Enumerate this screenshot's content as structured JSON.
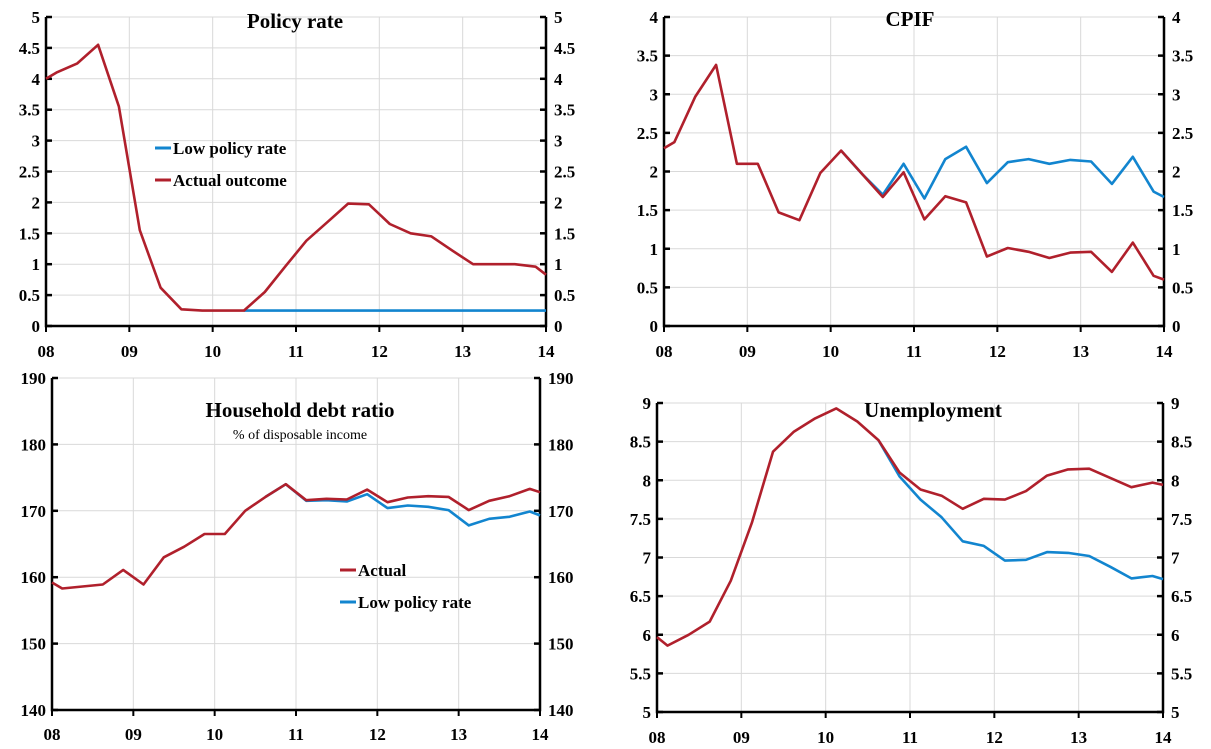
{
  "colors": {
    "actual": "#B0202C",
    "low": "#1285CF"
  },
  "chart_data": [
    {
      "type": "line",
      "title": "Policy rate",
      "subtitle": "",
      "xticks": [
        "08",
        "09",
        "10",
        "11",
        "12",
        "13",
        "14"
      ],
      "xlim": [
        0,
        6
      ],
      "ylim": [
        0,
        5
      ],
      "yticks": [
        "0",
        "0.5",
        "1",
        "1.5",
        "2",
        "2.5",
        "3",
        "3.5",
        "4",
        "4.5",
        "5"
      ],
      "grid": true,
      "legend": [
        "Low policy rate",
        "Actual outcome"
      ],
      "series": [
        {
          "name": "Low policy rate",
          "key": "low",
          "x": [
            2.375,
            2.625,
            2.875,
            3.125,
            3.375,
            3.625,
            3.875,
            4.125,
            4.375,
            4.625,
            4.875,
            5.125,
            5.375,
            5.625,
            5.875,
            6
          ],
          "y": [
            0.25,
            0.25,
            0.25,
            0.25,
            0.25,
            0.25,
            0.25,
            0.25,
            0.25,
            0.25,
            0.25,
            0.25,
            0.25,
            0.25,
            0.25,
            0.25
          ]
        },
        {
          "name": "Actual outcome",
          "key": "actual",
          "x": [
            0,
            0.125,
            0.375,
            0.625,
            0.875,
            1.125,
            1.375,
            1.625,
            1.875,
            2.125,
            2.375,
            2.625,
            2.875,
            3.125,
            3.375,
            3.625,
            3.875,
            4.125,
            4.375,
            4.625,
            4.875,
            5.125,
            5.375,
            5.625,
            5.875,
            6
          ],
          "y": [
            4.0,
            4.1,
            4.25,
            4.55,
            3.55,
            1.55,
            0.62,
            0.27,
            0.25,
            0.25,
            0.25,
            0.55,
            0.97,
            1.38,
            1.68,
            1.98,
            1.97,
            1.65,
            1.5,
            1.45,
            1.22,
            1.0,
            1.0,
            1.0,
            0.96,
            0.83
          ]
        }
      ]
    },
    {
      "type": "line",
      "title": "CPIF",
      "subtitle": "",
      "xticks": [
        "08",
        "09",
        "10",
        "11",
        "12",
        "13",
        "14"
      ],
      "xlim": [
        0,
        6
      ],
      "ylim": [
        0,
        4
      ],
      "yticks": [
        "0",
        "0.5",
        "1",
        "1.5",
        "2",
        "2.5",
        "3",
        "3.5",
        "4"
      ],
      "grid": true,
      "legend": [],
      "series": [
        {
          "name": "Low policy rate",
          "key": "low",
          "x": [
            2.125,
            2.375,
            2.625,
            2.875,
            3.125,
            3.375,
            3.625,
            3.875,
            4.125,
            4.375,
            4.625,
            4.875,
            5.125,
            5.375,
            5.625,
            5.875,
            6
          ],
          "y": [
            2.27,
            1.97,
            1.7,
            2.1,
            1.65,
            2.16,
            2.32,
            1.85,
            2.12,
            2.16,
            2.1,
            2.15,
            2.13,
            1.84,
            2.19,
            1.74,
            1.67
          ]
        },
        {
          "name": "Actual outcome",
          "key": "actual",
          "x": [
            0,
            0.125,
            0.375,
            0.625,
            0.875,
            1.125,
            1.375,
            1.625,
            1.875,
            2.125,
            2.375,
            2.625,
            2.875,
            3.125,
            3.375,
            3.625,
            3.875,
            4.125,
            4.375,
            4.625,
            4.875,
            5.125,
            5.375,
            5.625,
            5.875,
            6
          ],
          "y": [
            2.3,
            2.38,
            2.97,
            3.38,
            2.1,
            2.1,
            1.47,
            1.37,
            1.98,
            2.27,
            1.97,
            1.67,
            1.99,
            1.38,
            1.68,
            1.6,
            0.9,
            1.01,
            0.96,
            0.88,
            0.95,
            0.96,
            0.7,
            1.08,
            0.65,
            0.6
          ]
        }
      ]
    },
    {
      "type": "line",
      "title": "Household debt ratio",
      "subtitle": "% of disposable income",
      "xticks": [
        "08",
        "09",
        "10",
        "11",
        "12",
        "13",
        "14"
      ],
      "xlim": [
        0,
        6
      ],
      "ylim": [
        140,
        190
      ],
      "yticks": [
        "140",
        "150",
        "160",
        "170",
        "180",
        "190"
      ],
      "grid": true,
      "legend": [
        "Actual",
        "Low policy rate"
      ],
      "series": [
        {
          "name": "Low policy rate",
          "key": "low",
          "x": [
            2.625,
            2.875,
            3.125,
            3.375,
            3.625,
            3.875,
            4.125,
            4.375,
            4.625,
            4.875,
            5.125,
            5.375,
            5.625,
            5.875,
            6
          ],
          "y": [
            172.1,
            174.0,
            171.5,
            171.6,
            171.4,
            172.5,
            170.4,
            170.8,
            170.6,
            170.1,
            167.8,
            168.8,
            169.1,
            169.9,
            169.3
          ]
        },
        {
          "name": "Actual",
          "key": "actual",
          "x": [
            0,
            0.125,
            0.375,
            0.625,
            0.875,
            1.125,
            1.375,
            1.625,
            1.875,
            2.125,
            2.375,
            2.625,
            2.875,
            3.125,
            3.375,
            3.625,
            3.875,
            4.125,
            4.375,
            4.625,
            4.875,
            5.125,
            5.375,
            5.625,
            5.875,
            6
          ],
          "y": [
            159.2,
            158.3,
            158.6,
            158.9,
            161.1,
            158.9,
            163.0,
            164.6,
            166.5,
            166.5,
            170.0,
            172.1,
            174.0,
            171.6,
            171.8,
            171.7,
            173.2,
            171.3,
            172.0,
            172.2,
            172.1,
            170.1,
            171.5,
            172.2,
            173.3,
            172.8
          ]
        }
      ]
    },
    {
      "type": "line",
      "title": "Unemployment",
      "subtitle": "",
      "xticks": [
        "08",
        "09",
        "10",
        "11",
        "12",
        "13",
        "14"
      ],
      "xlim": [
        0,
        6
      ],
      "ylim": [
        5,
        9
      ],
      "yticks": [
        "5",
        "5.5",
        "6",
        "6.5",
        "7",
        "7.5",
        "8",
        "8.5",
        "9"
      ],
      "grid": true,
      "legend": [],
      "series": [
        {
          "name": "Low policy rate",
          "key": "low",
          "x": [
            2.625,
            2.875,
            3.125,
            3.375,
            3.625,
            3.875,
            4.125,
            4.375,
            4.625,
            4.875,
            5.125,
            5.375,
            5.625,
            5.875,
            6
          ],
          "y": [
            8.52,
            8.05,
            7.75,
            7.52,
            7.21,
            7.15,
            6.96,
            6.97,
            7.07,
            7.06,
            7.02,
            6.88,
            6.73,
            6.76,
            6.72
          ]
        },
        {
          "name": "Actual",
          "key": "actual",
          "x": [
            0,
            0.125,
            0.375,
            0.625,
            0.875,
            1.125,
            1.375,
            1.625,
            1.875,
            2.125,
            2.375,
            2.625,
            2.875,
            3.125,
            3.375,
            3.625,
            3.875,
            4.125,
            4.375,
            4.625,
            4.875,
            5.125,
            5.375,
            5.625,
            5.875,
            6
          ],
          "y": [
            5.97,
            5.86,
            6.0,
            6.17,
            6.7,
            7.45,
            8.37,
            8.63,
            8.8,
            8.93,
            8.76,
            8.52,
            8.1,
            7.88,
            7.8,
            7.63,
            7.76,
            7.75,
            7.86,
            8.06,
            8.14,
            8.15,
            8.03,
            7.91,
            7.97,
            7.94
          ]
        }
      ]
    }
  ]
}
